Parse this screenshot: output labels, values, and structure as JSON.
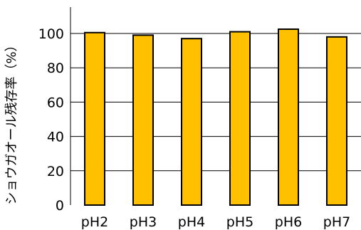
{
  "chart_data": {
    "type": "bar",
    "title": "",
    "xlabel": "",
    "ylabel": "ショウガオール残存率（%）",
    "categories": [
      "pH2",
      "pH3",
      "pH4",
      "pH5",
      "pH6",
      "pH7"
    ],
    "values": [
      100.5,
      99.0,
      97.0,
      101.0,
      102.5,
      98.0
    ],
    "ylim": [
      0,
      100
    ],
    "yticks": [
      0,
      20,
      40,
      60,
      80,
      100
    ],
    "grid": true,
    "bar_color": "#ffc000",
    "bar_edge_color": "#000000"
  }
}
